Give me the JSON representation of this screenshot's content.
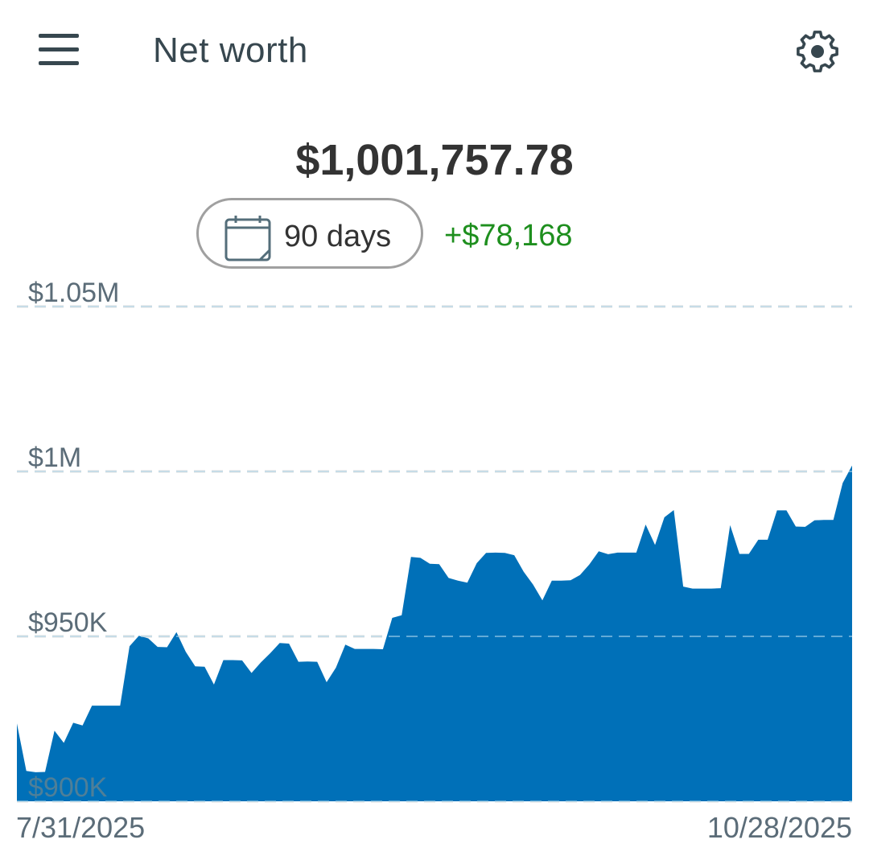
{
  "header": {
    "menu_icon": "hamburger-menu-icon",
    "title": "Net worth",
    "settings_icon": "gear-icon"
  },
  "summary": {
    "total": "$1,001,757.78",
    "range_icon": "calendar-icon",
    "range_label": "90 days",
    "change": "+$78,168"
  },
  "colors": {
    "area": "#0070b8",
    "positive": "#1e8f1e",
    "text": "#333333",
    "axis_text": "#5b6c78"
  },
  "chart_data": {
    "type": "area",
    "title": "",
    "xlabel": "",
    "ylabel": "",
    "grid": true,
    "ylim": [
      900000,
      1050000
    ],
    "yticks": [
      {
        "value": 1050000,
        "label": "$1.05M"
      },
      {
        "value": 1000000,
        "label": "$1M"
      },
      {
        "value": 950000,
        "label": "$950K"
      },
      {
        "value": 900000,
        "label": "$900K"
      }
    ],
    "x_labels": [
      "7/31/2025",
      "10/28/2025"
    ],
    "x_range": [
      "2025-07-31",
      "2025-10-28"
    ],
    "series": [
      {
        "values": [
          923600,
          909200,
          908800,
          908900,
          921400,
          917700,
          923800,
          923000,
          929000,
          929000,
          929000,
          929000,
          947000,
          950200,
          949400,
          946800,
          946700,
          951300,
          945300,
          940900,
          940800,
          935400,
          942800,
          942800,
          942700,
          938900,
          942100,
          944900,
          948000,
          947800,
          942300,
          942400,
          942300,
          936100,
          940500,
          947500,
          946200,
          946200,
          946200,
          946100,
          955600,
          956400,
          974100,
          973800,
          972000,
          971900,
          967700,
          966900,
          966300,
          972200,
          975300,
          975400,
          975300,
          974600,
          969600,
          965700,
          960900,
          966900,
          966900,
          967000,
          968600,
          971800,
          975800,
          974900,
          975400,
          975400,
          975400,
          983900,
          977700,
          986100,
          988300,
          965100,
          964500,
          964500,
          964500,
          964600,
          983700,
          975000,
          975000,
          979300,
          979300,
          988200,
          988200,
          983300,
          983200,
          985200,
          985300,
          985300,
          996500,
          1001800
        ]
      }
    ]
  }
}
